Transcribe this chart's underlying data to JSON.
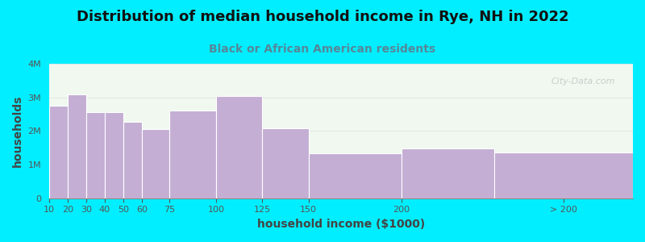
{
  "title": "Distribution of median household income in Rye, NH in 2022",
  "subtitle": "Black or African American residents",
  "xlabel": "household income ($1000)",
  "ylabel": "households",
  "background_outer": "#00eeff",
  "background_inner": "#f0f8f0",
  "bar_color": "#c4aed4",
  "bar_edge_color": "#ffffff",
  "bar_left_edges": [
    10,
    20,
    30,
    40,
    50,
    60,
    75,
    100,
    125,
    150,
    200,
    250
  ],
  "bar_widths": [
    10,
    10,
    10,
    10,
    10,
    15,
    25,
    25,
    25,
    50,
    50,
    75
  ],
  "values": [
    2750000,
    3100000,
    2550000,
    2550000,
    2280000,
    2050000,
    2600000,
    3050000,
    2080000,
    1330000,
    1480000,
    1350000
  ],
  "ylim": [
    0,
    4000000
  ],
  "xlim": [
    10,
    325
  ],
  "yticks": [
    0,
    1000000,
    2000000,
    3000000,
    4000000
  ],
  "ytick_labels": [
    "0",
    "1M",
    "2M",
    "3M",
    "4M"
  ],
  "xtick_positions": [
    10,
    20,
    30,
    40,
    50,
    60,
    75,
    100,
    125,
    150,
    200,
    287.5
  ],
  "xtick_labels": [
    "10",
    "20",
    "30",
    "40",
    "50",
    "60",
    "75",
    "100",
    "125",
    "150",
    "200",
    "> 200"
  ],
  "title_fontsize": 13,
  "subtitle_fontsize": 10,
  "axis_label_fontsize": 10,
  "tick_fontsize": 8,
  "title_color": "#111111",
  "subtitle_color": "#558899",
  "axis_label_color": "#444444",
  "tick_color": "#555555",
  "watermark": "City-Data.com"
}
